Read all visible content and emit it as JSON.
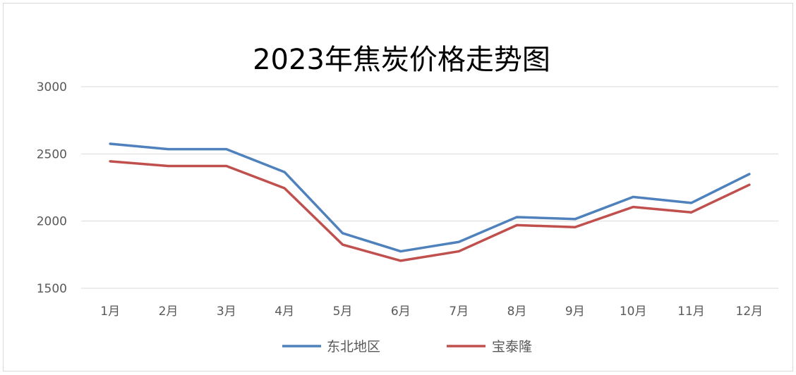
{
  "chart_data": {
    "type": "line",
    "title": "2023年焦炭价格走势图",
    "xlabel": "",
    "ylabel": "",
    "categories": [
      "1月",
      "2月",
      "3月",
      "4月",
      "5月",
      "6月",
      "7月",
      "8月",
      "9月",
      "10月",
      "11月",
      "12月"
    ],
    "ylim": [
      1500,
      3000
    ],
    "yticks": [
      1500,
      2000,
      2500,
      3000
    ],
    "grid": true,
    "legend": "bottom",
    "series": [
      {
        "name": "东北地区",
        "color": "#4f81bd",
        "values": [
          2575,
          2535,
          2535,
          2365,
          1910,
          1775,
          1845,
          2030,
          2015,
          2180,
          2135,
          2350
        ]
      },
      {
        "name": "宝泰隆",
        "color": "#c0504d",
        "values": [
          2445,
          2410,
          2410,
          2245,
          1825,
          1705,
          1775,
          1970,
          1955,
          2105,
          2065,
          2270
        ]
      }
    ]
  }
}
